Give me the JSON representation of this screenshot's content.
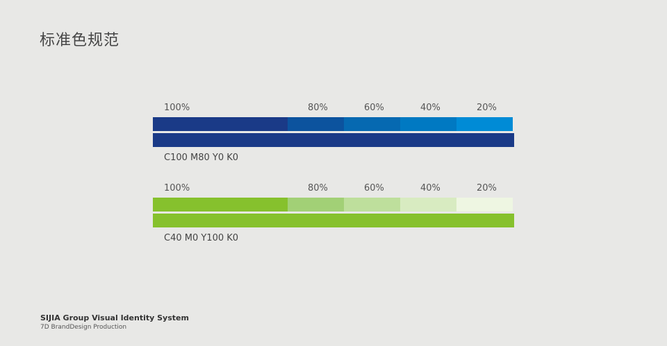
{
  "title": "标准色规范",
  "groups": [
    {
      "id": "blue",
      "labels": [
        "100%",
        "80%",
        "60%",
        "40%",
        "20%"
      ],
      "tints": [
        "#1a3a87",
        "#0c539e",
        "#0669b1",
        "#0079c2",
        "#008bd6"
      ],
      "solid": "#1a3a87",
      "cmyk": "C100 M80 Y0 K0"
    },
    {
      "id": "green",
      "labels": [
        "100%",
        "80%",
        "60%",
        "40%",
        "20%"
      ],
      "tints": [
        "#86c12d",
        "#a2d076",
        "#bedf9c",
        "#d8ebc1",
        "#eef6e2"
      ],
      "solid": "#86c12d",
      "cmyk": "C40 M0 Y100 K0"
    }
  ],
  "footer": {
    "title": "SIJIA Group Visual Identity System",
    "subtitle": "7D BrandDesign Production"
  }
}
